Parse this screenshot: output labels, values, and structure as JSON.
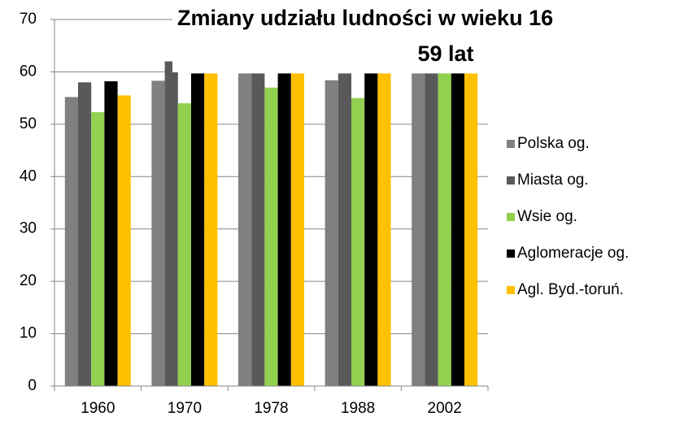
{
  "chart_data": {
    "type": "bar",
    "title": [
      "Zmiany udziału ludności w wieku 16",
      "59 lat"
    ],
    "categories": [
      "1960",
      "1970",
      "1978",
      "1988",
      "2002"
    ],
    "series": [
      {
        "name": "Polska og.",
        "color": "#808080",
        "values": [
          55.2,
          58.3,
          59.7,
          58.4,
          59.7
        ]
      },
      {
        "name": "Miasta og.",
        "color": "#595959",
        "values": [
          58,
          62,
          59.7,
          59.7,
          59.7
        ]
      },
      {
        "name": "Wsie og.",
        "color": "#92d050",
        "values": [
          52.3,
          54,
          57,
          55,
          59.7
        ]
      },
      {
        "name": "Aglomeracje og.",
        "color": "#000000",
        "values": [
          58.2,
          59.7,
          59.7,
          59.7,
          59.7
        ]
      },
      {
        "name": "Agl. Byd.-toruń.",
        "color": "#ffc000",
        "values": [
          55.5,
          59.7,
          59.7,
          59.7,
          59.7
        ]
      }
    ],
    "ylim": [
      0,
      70
    ],
    "yticks": [
      0,
      10,
      20,
      30,
      40,
      50,
      60,
      70
    ],
    "grid": true,
    "legend": "right"
  }
}
